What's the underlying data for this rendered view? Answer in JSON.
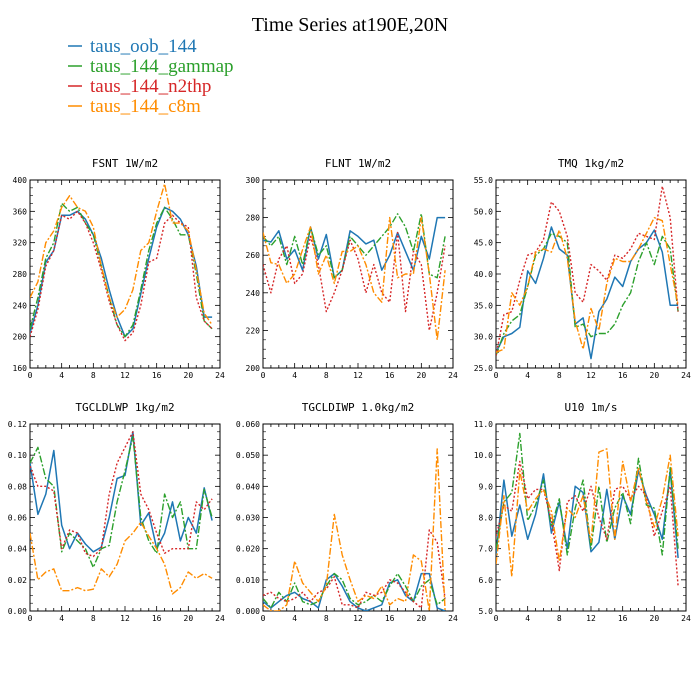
{
  "figure": {
    "title": "Time Series at190E,20N"
  },
  "colors": {
    "oob": "#1f77b4",
    "gammap": "#2ca02c",
    "n2thp": "#d62728",
    "c8m": "#ff8c00"
  },
  "legend": [
    {
      "label": "taus_oob_144",
      "color": "#1f77b4",
      "dash": "solid"
    },
    {
      "label": "taus_144_gammap",
      "color": "#2ca02c",
      "dash": "dashdot"
    },
    {
      "label": "taus_144_n2thp",
      "color": "#d62728",
      "dash": "dotted"
    },
    {
      "label": "taus_144_c8m",
      "color": "#ff8c00",
      "dash": "dashdot"
    }
  ],
  "chart_data": [
    {
      "type": "line",
      "title": "FSNT  1W/m2",
      "xlim": [
        0,
        24
      ],
      "ylim": [
        160,
        400
      ],
      "xticks": [
        "0",
        "4",
        "8",
        "12",
        "16",
        "20",
        "24"
      ],
      "yticks": [
        "160",
        "200",
        "240",
        "280",
        "320",
        "360",
        "400"
      ],
      "x": [
        0,
        1,
        2,
        3,
        4,
        5,
        6,
        7,
        8,
        9,
        10,
        11,
        12,
        13,
        14,
        15,
        16,
        17,
        18,
        19,
        20,
        21,
        22,
        23
      ],
      "series": [
        {
          "name": "taus_oob_144",
          "values": [
            205,
            240,
            295,
            310,
            355,
            355,
            360,
            350,
            330,
            300,
            260,
            225,
            200,
            210,
            255,
            300,
            340,
            365,
            360,
            350,
            330,
            290,
            225,
            225
          ]
        },
        {
          "name": "taus_144_gammap",
          "values": [
            210,
            250,
            300,
            320,
            370,
            360,
            365,
            345,
            330,
            290,
            250,
            215,
            200,
            215,
            260,
            310,
            345,
            365,
            350,
            330,
            330,
            280,
            220,
            210
          ]
        },
        {
          "name": "taus_144_n2thp",
          "values": [
            200,
            235,
            290,
            310,
            355,
            350,
            360,
            345,
            320,
            285,
            245,
            215,
            195,
            205,
            240,
            295,
            300,
            345,
            355,
            345,
            340,
            250,
            220,
            210
          ]
        },
        {
          "name": "taus_144_c8m",
          "values": [
            250,
            270,
            320,
            335,
            365,
            380,
            365,
            360,
            340,
            290,
            250,
            225,
            235,
            260,
            310,
            320,
            360,
            395,
            345,
            345,
            335,
            285,
            230,
            215
          ]
        }
      ]
    },
    {
      "type": "line",
      "title": "FLNT  1W/m2",
      "xlim": [
        0,
        24
      ],
      "ylim": [
        200,
        300
      ],
      "xticks": [
        "0",
        "4",
        "8",
        "12",
        "16",
        "20",
        "24"
      ],
      "yticks": [
        "200",
        "220",
        "240",
        "260",
        "280",
        "300"
      ],
      "x": [
        0,
        1,
        2,
        3,
        4,
        5,
        6,
        7,
        8,
        9,
        10,
        11,
        12,
        13,
        14,
        15,
        16,
        17,
        18,
        19,
        20,
        21,
        22,
        23
      ],
      "series": [
        {
          "name": "taus_oob_144",
          "values": [
            268,
            267,
            273,
            258,
            263,
            252,
            275,
            258,
            271,
            248,
            252,
            273,
            270,
            266,
            268,
            252,
            260,
            272,
            262,
            252,
            270,
            258,
            280,
            280
          ]
        },
        {
          "name": "taus_144_gammap",
          "values": [
            270,
            265,
            270,
            255,
            270,
            255,
            275,
            260,
            265,
            248,
            252,
            270,
            265,
            260,
            265,
            270,
            275,
            282,
            275,
            262,
            282,
            250,
            248,
            270
          ]
        },
        {
          "name": "taus_144_n2thp",
          "values": [
            255,
            240,
            258,
            265,
            245,
            250,
            270,
            255,
            230,
            240,
            252,
            268,
            258,
            240,
            255,
            240,
            235,
            272,
            230,
            262,
            255,
            220,
            240,
            265
          ]
        },
        {
          "name": "taus_144_c8m",
          "values": [
            272,
            256,
            255,
            245,
            250,
            263,
            275,
            250,
            260,
            245,
            262,
            262,
            265,
            255,
            240,
            235,
            280,
            248,
            250,
            250,
            280,
            250,
            215,
            252
          ]
        }
      ]
    },
    {
      "type": "line",
      "title": "TMQ  1kg/m2",
      "xlim": [
        0,
        24
      ],
      "ylim": [
        25,
        55
      ],
      "xticks": [
        "0",
        "4",
        "8",
        "12",
        "16",
        "20",
        "24"
      ],
      "yticks": [
        "25.0",
        "30.0",
        "35.0",
        "40.0",
        "45.0",
        "50.0",
        "55.0"
      ],
      "x": [
        0,
        1,
        2,
        3,
        4,
        5,
        6,
        7,
        8,
        9,
        10,
        11,
        12,
        13,
        14,
        15,
        16,
        17,
        18,
        19,
        20,
        21,
        22,
        23
      ],
      "series": [
        {
          "name": "taus_oob_144",
          "values": [
            27.5,
            30,
            30.5,
            31.5,
            40.5,
            38.5,
            42.5,
            47.5,
            44,
            43,
            32,
            33,
            26.5,
            34,
            36,
            39.5,
            38,
            42,
            44,
            45,
            47,
            43.5,
            35,
            35
          ]
        },
        {
          "name": "taus_144_gammap",
          "values": [
            27,
            30.5,
            32.5,
            33.5,
            38,
            43,
            44,
            46.5,
            46,
            45,
            31.5,
            32,
            30,
            30.5,
            30.5,
            32,
            35,
            37,
            42,
            45,
            41.5,
            46,
            44,
            34
          ]
        },
        {
          "name": "taus_144_n2thp",
          "values": [
            27,
            33.5,
            34,
            39,
            43,
            43.5,
            45.5,
            51.5,
            50,
            46,
            37,
            35.5,
            41.5,
            40.5,
            39,
            43,
            42.5,
            44,
            46.5,
            46,
            45.5,
            54,
            49,
            34
          ]
        },
        {
          "name": "taus_144_c8m",
          "values": [
            27.5,
            28,
            37,
            35,
            38,
            43.5,
            44,
            43.5,
            47,
            42.5,
            32.5,
            28,
            34.5,
            31,
            38.5,
            42.5,
            42,
            42,
            44,
            46.5,
            49,
            48.5,
            41.5,
            35
          ]
        }
      ]
    },
    {
      "type": "line",
      "title": "TGCLDLWP  1kg/m2",
      "xlim": [
        0,
        24
      ],
      "ylim": [
        0,
        0.12
      ],
      "xticks": [
        "0",
        "4",
        "8",
        "12",
        "16",
        "20",
        "24"
      ],
      "yticks": [
        "0.00",
        "0.02",
        "0.04",
        "0.06",
        "0.08",
        "0.10",
        "0.12"
      ],
      "x": [
        0,
        1,
        2,
        3,
        4,
        5,
        6,
        7,
        8,
        9,
        10,
        11,
        12,
        13,
        14,
        15,
        16,
        17,
        18,
        19,
        20,
        21,
        22,
        23
      ],
      "series": [
        {
          "name": "taus_oob_144",
          "values": [
            0.095,
            0.062,
            0.075,
            0.103,
            0.055,
            0.04,
            0.05,
            0.043,
            0.038,
            0.041,
            0.06,
            0.085,
            0.087,
            0.115,
            0.055,
            0.063,
            0.04,
            0.05,
            0.07,
            0.045,
            0.06,
            0.05,
            0.079,
            0.058
          ]
        },
        {
          "name": "taus_144_gammap",
          "values": [
            0.095,
            0.105,
            0.085,
            0.08,
            0.038,
            0.05,
            0.045,
            0.04,
            0.028,
            0.04,
            0.042,
            0.07,
            0.09,
            0.112,
            0.06,
            0.045,
            0.037,
            0.075,
            0.06,
            0.07,
            0.04,
            0.04,
            0.078,
            0.06
          ]
        },
        {
          "name": "taus_144_n2thp",
          "values": [
            0.093,
            0.08,
            0.08,
            0.077,
            0.04,
            0.052,
            0.05,
            0.037,
            0.035,
            0.04,
            0.075,
            0.095,
            0.105,
            0.115,
            0.075,
            0.065,
            0.05,
            0.037,
            0.04,
            0.04,
            0.04,
            0.07,
            0.065,
            0.072
          ]
        },
        {
          "name": "taus_144_c8m",
          "values": [
            0.05,
            0.02,
            0.025,
            0.027,
            0.013,
            0.013,
            0.015,
            0.013,
            0.014,
            0.027,
            0.022,
            0.03,
            0.045,
            0.05,
            0.057,
            0.048,
            0.04,
            0.03,
            0.011,
            0.015,
            0.025,
            0.021,
            0.024,
            0.021
          ]
        }
      ]
    },
    {
      "type": "line",
      "title": "TGCLDIWP  1.0kg/m2",
      "xlim": [
        0,
        24
      ],
      "ylim": [
        0,
        0.06
      ],
      "xticks": [
        "0",
        "4",
        "8",
        "12",
        "16",
        "20",
        "24"
      ],
      "yticks": [
        "0.000",
        "0.010",
        "0.020",
        "0.030",
        "0.040",
        "0.050",
        "0.060"
      ],
      "x": [
        0,
        1,
        2,
        3,
        4,
        5,
        6,
        7,
        8,
        9,
        10,
        11,
        12,
        13,
        14,
        15,
        16,
        17,
        18,
        19,
        20,
        21,
        22,
        23
      ],
      "series": [
        {
          "name": "taus_oob_144",
          "values": [
            0.003,
            0.001,
            0.003,
            0.005,
            0.006,
            0.004,
            0.003,
            0.001,
            0.01,
            0.012,
            0.008,
            0.003,
            0.001,
            0.0,
            0.001,
            0.002,
            0.009,
            0.01,
            0.005,
            0.003,
            0.012,
            0.012,
            0.001,
            0.0
          ]
        },
        {
          "name": "taus_144_gammap",
          "values": [
            0.004,
            0.001,
            0.006,
            0.003,
            0.009,
            0.003,
            0.002,
            0.003,
            0.008,
            0.012,
            0.01,
            0.004,
            0.002,
            0.003,
            0.005,
            0.003,
            0.008,
            0.012,
            0.008,
            0.003,
            0.008,
            0.01,
            0.002,
            0.004
          ]
        },
        {
          "name": "taus_144_n2thp",
          "values": [
            0.005,
            0.006,
            0.004,
            0.003,
            0.004,
            0.006,
            0.003,
            0.006,
            0.007,
            0.011,
            0.002,
            0.002,
            0.001,
            0.006,
            0.005,
            0.006,
            0.01,
            0.009,
            0.006,
            0.003,
            0.001,
            0.026,
            0.022,
            0.004
          ]
        },
        {
          "name": "taus_144_c8m",
          "values": [
            0.002,
            0.0,
            0.0,
            0.002,
            0.016,
            0.009,
            0.006,
            0.003,
            0.008,
            0.031,
            0.018,
            0.01,
            0.003,
            0.005,
            0.004,
            0.008,
            0.002,
            0.004,
            0.003,
            0.018,
            0.016,
            0.0,
            0.052,
            0.0
          ]
        }
      ]
    },
    {
      "type": "line",
      "title": "U10  1m/s",
      "xlim": [
        0,
        24
      ],
      "ylim": [
        5,
        11
      ],
      "xticks": [
        "0",
        "4",
        "8",
        "12",
        "16",
        "20",
        "24"
      ],
      "yticks": [
        "5.0",
        "6.0",
        "7.0",
        "8.0",
        "9.0",
        "10.0",
        "11.0"
      ],
      "x": [
        0,
        1,
        2,
        3,
        4,
        5,
        6,
        7,
        8,
        9,
        10,
        11,
        12,
        13,
        14,
        15,
        16,
        17,
        18,
        19,
        20,
        21,
        22,
        23
      ],
      "series": [
        {
          "name": "taus_oob_144",
          "values": [
            6.8,
            9.2,
            7.4,
            8.4,
            7.3,
            8.1,
            9.4,
            7.5,
            8.5,
            7.0,
            9.0,
            8.8,
            6.9,
            7.2,
            8.9,
            7.3,
            8.7,
            8.1,
            9.5,
            8.7,
            8.1,
            7.3,
            9.5,
            6.7
          ]
        },
        {
          "name": "taus_144_gammap",
          "values": [
            7.0,
            8.5,
            8.8,
            10.7,
            7.9,
            8.4,
            9.2,
            7.7,
            8.6,
            6.8,
            8.3,
            9.2,
            7.0,
            9.0,
            7.2,
            8.3,
            8.8,
            7.8,
            9.9,
            8.4,
            8.3,
            6.8,
            9.6,
            7.0
          ]
        },
        {
          "name": "taus_144_n2thp",
          "values": [
            7.4,
            8.4,
            8.2,
            9.8,
            8.6,
            8.9,
            8.9,
            7.9,
            6.3,
            8.5,
            8.7,
            8.2,
            9.0,
            8.0,
            7.3,
            8.9,
            9.0,
            8.6,
            9.0,
            8.7,
            7.4,
            8.2,
            9.0,
            5.8
          ]
        },
        {
          "name": "taus_144_c8m",
          "values": [
            6.5,
            8.7,
            6.1,
            9.5,
            8.2,
            8.6,
            8.9,
            8.2,
            6.6,
            8.3,
            8.0,
            8.7,
            7.2,
            10.1,
            10.2,
            7.3,
            9.8,
            8.5,
            9.6,
            8.5,
            7.7,
            8.6,
            10.0,
            7.4
          ]
        }
      ]
    }
  ]
}
